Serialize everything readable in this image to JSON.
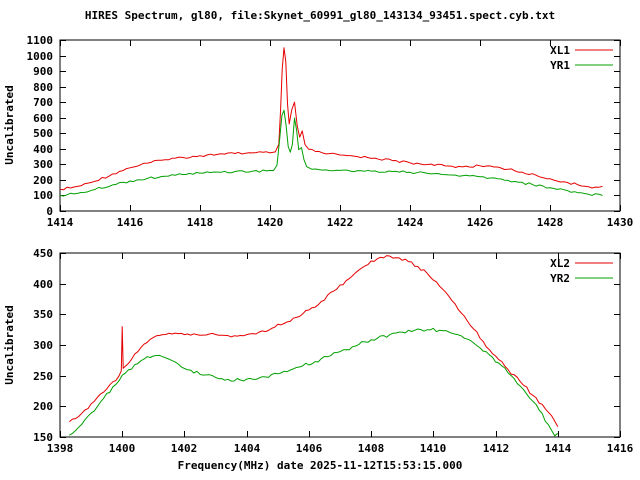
{
  "title": "HIRES Spectrum, gl80, file:Skynet_60991_gl80_143134_93451.spect.cyb.txt",
  "xlabel": "Frequency(MHz) date 2025-11-12T15:53:15.000",
  "chart_data": [
    {
      "type": "line",
      "ylabel": "Uncalibrated",
      "xlim": [
        1414,
        1430
      ],
      "xtick_step": 2,
      "ylim": [
        0,
        1100
      ],
      "ytick_step": 100,
      "legend_position": "top-right",
      "grid": false,
      "series": [
        {
          "name": "XL1",
          "color": "#e60000",
          "points": [
            [
              1414.0,
              140
            ],
            [
              1414.3,
              148
            ],
            [
              1414.6,
              162
            ],
            [
              1415.0,
              192
            ],
            [
              1415.5,
              238
            ],
            [
              1416.0,
              278
            ],
            [
              1416.5,
              308
            ],
            [
              1417.0,
              330
            ],
            [
              1417.5,
              345
            ],
            [
              1418.0,
              356
            ],
            [
              1418.5,
              364
            ],
            [
              1419.0,
              370
            ],
            [
              1419.5,
              374
            ],
            [
              1419.8,
              378
            ],
            [
              1420.0,
              374
            ],
            [
              1420.15,
              380
            ],
            [
              1420.25,
              430
            ],
            [
              1420.3,
              640
            ],
            [
              1420.35,
              910
            ],
            [
              1420.4,
              1050
            ],
            [
              1420.45,
              960
            ],
            [
              1420.5,
              690
            ],
            [
              1420.55,
              560
            ],
            [
              1420.62,
              650
            ],
            [
              1420.7,
              700
            ],
            [
              1420.78,
              545
            ],
            [
              1420.85,
              475
            ],
            [
              1420.92,
              515
            ],
            [
              1421.0,
              428
            ],
            [
              1421.1,
              398
            ],
            [
              1421.3,
              383
            ],
            [
              1421.5,
              374
            ],
            [
              1422.0,
              360
            ],
            [
              1422.5,
              350
            ],
            [
              1423.0,
              340
            ],
            [
              1423.5,
              324
            ],
            [
              1424.0,
              310
            ],
            [
              1424.5,
              299
            ],
            [
              1425.0,
              290
            ],
            [
              1425.5,
              284
            ],
            [
              1426.0,
              291
            ],
            [
              1426.4,
              283
            ],
            [
              1426.8,
              268
            ],
            [
              1427.2,
              250
            ],
            [
              1427.6,
              230
            ],
            [
              1428.0,
              208
            ],
            [
              1428.4,
              188
            ],
            [
              1428.8,
              168
            ],
            [
              1429.1,
              156
            ],
            [
              1429.4,
              153
            ],
            [
              1429.5,
              158
            ]
          ]
        },
        {
          "name": "YR1",
          "color": "#00a000",
          "points": [
            [
              1414.0,
              100
            ],
            [
              1414.5,
              113
            ],
            [
              1415.0,
              138
            ],
            [
              1415.5,
              168
            ],
            [
              1416.0,
              193
            ],
            [
              1416.5,
              210
            ],
            [
              1417.0,
              224
            ],
            [
              1417.5,
              235
            ],
            [
              1418.0,
              244
            ],
            [
              1418.5,
              250
            ],
            [
              1419.0,
              254
            ],
            [
              1419.5,
              256
            ],
            [
              1419.9,
              258
            ],
            [
              1420.1,
              260
            ],
            [
              1420.2,
              295
            ],
            [
              1420.28,
              470
            ],
            [
              1420.34,
              615
            ],
            [
              1420.4,
              648
            ],
            [
              1420.46,
              550
            ],
            [
              1420.52,
              415
            ],
            [
              1420.58,
              378
            ],
            [
              1420.64,
              430
            ],
            [
              1420.7,
              598
            ],
            [
              1420.76,
              520
            ],
            [
              1420.82,
              395
            ],
            [
              1420.9,
              408
            ],
            [
              1420.97,
              330
            ],
            [
              1421.05,
              285
            ],
            [
              1421.2,
              268
            ],
            [
              1421.5,
              263
            ],
            [
              1422.0,
              261
            ],
            [
              1422.5,
              260
            ],
            [
              1423.0,
              258
            ],
            [
              1423.5,
              254
            ],
            [
              1424.0,
              249
            ],
            [
              1424.5,
              242
            ],
            [
              1425.0,
              234
            ],
            [
              1425.5,
              227
            ],
            [
              1426.0,
              220
            ],
            [
              1426.5,
              208
            ],
            [
              1427.0,
              190
            ],
            [
              1427.5,
              170
            ],
            [
              1428.0,
              150
            ],
            [
              1428.5,
              131
            ],
            [
              1429.0,
              112
            ],
            [
              1429.5,
              100
            ]
          ]
        }
      ]
    },
    {
      "type": "line",
      "ylabel": "Uncalibrated",
      "xlim": [
        1398,
        1416
      ],
      "xtick_step": 2,
      "ylim": [
        150,
        450
      ],
      "ytick_step": 50,
      "legend_position": "top-right",
      "grid": false,
      "series": [
        {
          "name": "XL2",
          "color": "#e60000",
          "points": [
            [
              1398.3,
              175
            ],
            [
              1398.5,
              180
            ],
            [
              1398.8,
              194
            ],
            [
              1399.1,
              208
            ],
            [
              1399.4,
              223
            ],
            [
              1399.7,
              240
            ],
            [
              1399.9,
              250
            ],
            [
              1399.97,
              258
            ],
            [
              1400.0,
              330
            ],
            [
              1400.03,
              262
            ],
            [
              1400.2,
              270
            ],
            [
              1400.5,
              289
            ],
            [
              1400.8,
              304
            ],
            [
              1401.0,
              312
            ],
            [
              1401.3,
              317
            ],
            [
              1401.6,
              318
            ],
            [
              1402.0,
              317
            ],
            [
              1402.4,
              317
            ],
            [
              1402.8,
              318
            ],
            [
              1403.2,
              316
            ],
            [
              1403.6,
              315
            ],
            [
              1404.0,
              317
            ],
            [
              1404.4,
              321
            ],
            [
              1404.8,
              327
            ],
            [
              1405.2,
              335
            ],
            [
              1405.6,
              345
            ],
            [
              1406.0,
              357
            ],
            [
              1406.4,
              371
            ],
            [
              1406.8,
              388
            ],
            [
              1407.2,
              405
            ],
            [
              1407.6,
              422
            ],
            [
              1408.0,
              437
            ],
            [
              1408.3,
              443
            ],
            [
              1408.6,
              445
            ],
            [
              1408.9,
              442
            ],
            [
              1409.2,
              436
            ],
            [
              1409.5,
              428
            ],
            [
              1409.8,
              417
            ],
            [
              1410.1,
              403
            ],
            [
              1410.4,
              386
            ],
            [
              1410.7,
              367
            ],
            [
              1411.0,
              347
            ],
            [
              1411.3,
              326
            ],
            [
              1411.6,
              306
            ],
            [
              1412.0,
              282
            ],
            [
              1412.4,
              260
            ],
            [
              1412.8,
              240
            ],
            [
              1413.2,
              218
            ],
            [
              1413.6,
              196
            ],
            [
              1413.9,
              176
            ],
            [
              1414.0,
              167
            ]
          ]
        },
        {
          "name": "YR2",
          "color": "#00a000",
          "points": [
            [
              1398.3,
              153
            ],
            [
              1398.6,
              166
            ],
            [
              1399.0,
              189
            ],
            [
              1399.4,
              213
            ],
            [
              1399.8,
              236
            ],
            [
              1400.1,
              254
            ],
            [
              1400.4,
              268
            ],
            [
              1400.7,
              277
            ],
            [
              1401.0,
              282
            ],
            [
              1401.2,
              283
            ],
            [
              1401.5,
              277
            ],
            [
              1401.8,
              269
            ],
            [
              1402.2,
              259
            ],
            [
              1402.6,
              251
            ],
            [
              1403.0,
              247
            ],
            [
              1403.4,
              244
            ],
            [
              1403.8,
              243
            ],
            [
              1404.2,
              244
            ],
            [
              1404.6,
              248
            ],
            [
              1405.0,
              253
            ],
            [
              1405.4,
              259
            ],
            [
              1405.8,
              266
            ],
            [
              1406.2,
              273
            ],
            [
              1406.6,
              281
            ],
            [
              1407.0,
              289
            ],
            [
              1407.4,
              297
            ],
            [
              1407.8,
              305
            ],
            [
              1408.2,
              311
            ],
            [
              1408.6,
              317
            ],
            [
              1409.0,
              321
            ],
            [
              1409.4,
              324
            ],
            [
              1409.8,
              325
            ],
            [
              1410.2,
              324
            ],
            [
              1410.6,
              319
            ],
            [
              1411.0,
              311
            ],
            [
              1411.4,
              299
            ],
            [
              1411.8,
              284
            ],
            [
              1412.2,
              266
            ],
            [
              1412.6,
              245
            ],
            [
              1413.0,
              220
            ],
            [
              1413.4,
              194
            ],
            [
              1413.7,
              170
            ],
            [
              1413.9,
              152
            ],
            [
              1414.0,
              156
            ]
          ]
        }
      ]
    }
  ]
}
